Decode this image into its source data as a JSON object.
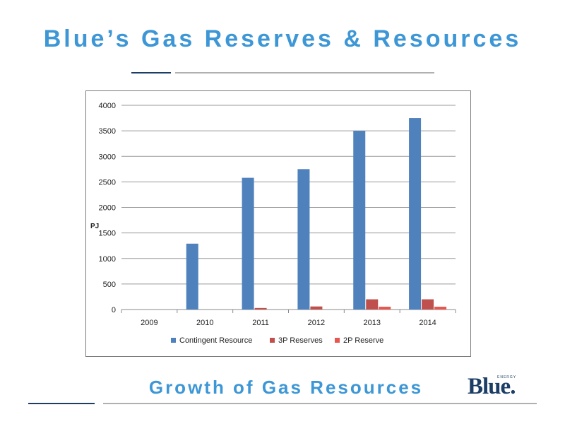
{
  "page": {
    "title": "Blue’s Gas Reserves & Resources",
    "subtitle": "Growth of Gas Resources",
    "logo_text": "Blue",
    "logo_dot": ".",
    "logo_tagline": "ENERGY"
  },
  "colors": {
    "title": "#3d97d6",
    "dark_rule": "#1b3d66",
    "light_rule": "#b0b0b0",
    "contingent": "#4f81bd",
    "reserves_3p": "#c0504d",
    "reserves_2p": "#e8574f"
  },
  "chart_data": {
    "type": "bar",
    "title": "",
    "xlabel": "",
    "ylabel": "PJ",
    "categories": [
      "2009",
      "2010",
      "2011",
      "2012",
      "2013",
      "2014"
    ],
    "ylim": [
      0,
      4000
    ],
    "yticks": [
      0,
      500,
      1000,
      1500,
      2000,
      2500,
      3000,
      3500,
      4000
    ],
    "grid": true,
    "legend_position": "bottom",
    "series": [
      {
        "name": "Contingent Resource",
        "values": [
          0,
          1290,
          2580,
          2750,
          3500,
          3750
        ]
      },
      {
        "name": "3P Reserves",
        "values": [
          0,
          0,
          30,
          60,
          200,
          200
        ]
      },
      {
        "name": "2P Reserve",
        "values": [
          0,
          0,
          0,
          0,
          55,
          55
        ]
      }
    ]
  }
}
